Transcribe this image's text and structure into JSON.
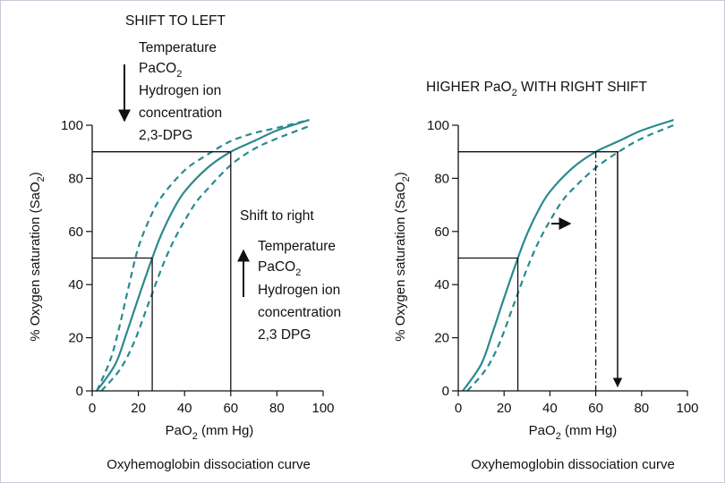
{
  "colors": {
    "curve": "#2a8a8e",
    "axis": "#111111",
    "frame": "#c8c8d8"
  },
  "chart_data": [
    {
      "type": "line",
      "title": "SHIFT TO LEFT",
      "xlabel": {
        "main": "PaO",
        "sub": "2",
        "rest": " (mm Hg)"
      },
      "ylabel": {
        "main": "% Oxygen saturation (SaO",
        "sub": "2",
        "rest": ")"
      },
      "caption": "Oxyhemoglobin dissociation curve",
      "xlim": [
        0,
        100
      ],
      "ylim": [
        0,
        100
      ],
      "xticks": [
        "0",
        "20",
        "40",
        "60",
        "80",
        "100"
      ],
      "yticks": [
        "0",
        "20",
        "40",
        "60",
        "80",
        "100"
      ],
      "grid": false,
      "series": [
        {
          "style": "solid",
          "x": [
            2,
            10,
            15,
            20,
            26,
            30,
            35,
            40,
            50,
            60,
            70,
            80,
            94
          ],
          "y": [
            0,
            10,
            22,
            35,
            50,
            59,
            68,
            75,
            84,
            90,
            94,
            98,
            102
          ]
        },
        {
          "style": "dashed",
          "x": [
            2,
            8,
            12,
            16,
            20,
            25,
            30,
            40,
            50,
            60,
            70,
            80,
            94
          ],
          "y": [
            0,
            12,
            25,
            40,
            54,
            65,
            73,
            83,
            89,
            94,
            97,
            99,
            102
          ]
        },
        {
          "style": "dashed",
          "x": [
            4,
            12,
            18,
            24,
            30,
            35,
            40,
            45,
            50,
            60,
            70,
            80,
            95
          ],
          "y": [
            0,
            8,
            18,
            32,
            46,
            56,
            64,
            71,
            76,
            85,
            91,
            95,
            100
          ]
        }
      ],
      "guides": [
        {
          "from": [
            0,
            90
          ],
          "to": [
            60,
            90
          ]
        },
        {
          "from": [
            60,
            90
          ],
          "to": [
            60,
            0
          ]
        },
        {
          "from": [
            0,
            50
          ],
          "to": [
            26,
            50
          ]
        },
        {
          "from": [
            26,
            50
          ],
          "to": [
            26,
            0
          ]
        }
      ],
      "annotations": [
        {
          "label": "Temperature"
        },
        {
          "label": "PaCO",
          "sub": "2"
        },
        {
          "label": "Hydrogen ion"
        },
        {
          "label": "concentration"
        },
        {
          "label": "2,3-DPG"
        },
        {
          "label": "Shift to right"
        },
        {
          "label": "Temperature"
        },
        {
          "label": "PaCO",
          "sub": "2"
        },
        {
          "label": "Hydrogen ion"
        },
        {
          "label": "concentration"
        },
        {
          "label": "2,3 DPG"
        }
      ]
    },
    {
      "type": "line",
      "title": {
        "main": "HIGHER PaO",
        "sub": "2",
        "rest": " WITH RIGHT SHIFT"
      },
      "xlabel": {
        "main": "PaO",
        "sub": "2",
        "rest": " (mm Hg)"
      },
      "ylabel": {
        "main": "% Oxygen saturation (SaO",
        "sub": "2",
        "rest": ")"
      },
      "caption": "Oxyhemoglobin dissociation curve",
      "xlim": [
        0,
        100
      ],
      "ylim": [
        0,
        100
      ],
      "xticks": [
        "0",
        "20",
        "40",
        "60",
        "80",
        "100"
      ],
      "yticks": [
        "0",
        "20",
        "40",
        "60",
        "80",
        "100"
      ],
      "grid": false,
      "series": [
        {
          "style": "solid",
          "x": [
            2,
            10,
            15,
            20,
            26,
            30,
            35,
            40,
            50,
            60,
            70,
            80,
            94
          ],
          "y": [
            0,
            10,
            22,
            35,
            50,
            59,
            68,
            75,
            84,
            90,
            94,
            98,
            102
          ]
        },
        {
          "style": "dashed",
          "x": [
            4,
            12,
            18,
            24,
            30,
            35,
            40,
            45,
            50,
            60,
            70,
            80,
            94
          ],
          "y": [
            0,
            8,
            18,
            32,
            46,
            56,
            64,
            71,
            76,
            84,
            90,
            95,
            100
          ]
        }
      ],
      "guides": [
        {
          "from": [
            0,
            90
          ],
          "to": [
            70,
            90
          ]
        },
        {
          "from": [
            0,
            50
          ],
          "to": [
            26,
            50
          ]
        },
        {
          "from": [
            26,
            50
          ],
          "to": [
            26,
            0
          ]
        },
        {
          "from": [
            60,
            90
          ],
          "to": [
            60,
            0
          ],
          "style": "dashdot"
        }
      ]
    }
  ]
}
